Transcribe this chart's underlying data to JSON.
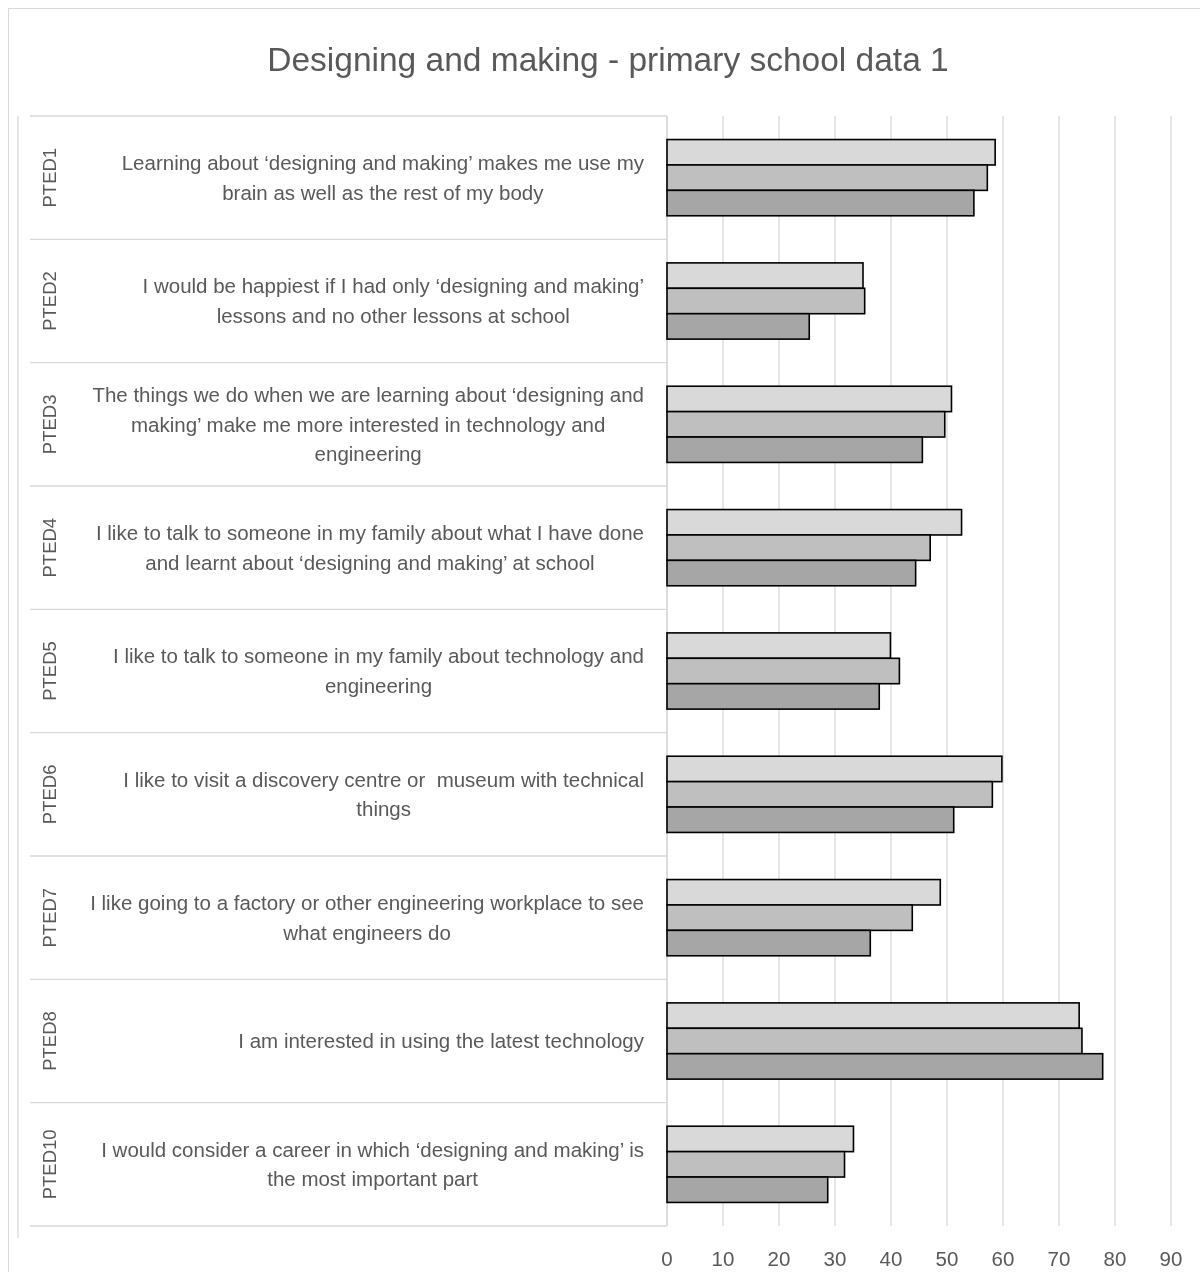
{
  "chart_data": {
    "type": "bar",
    "orientation": "horizontal",
    "title": "Designing and making - primary school data 1",
    "categories": [
      "Learning about ‘designing and making’ makes me use my brain as well as the rest of my body",
      "I would be happiest if I had only ‘designing and making’ lessons and no other lessons at school",
      "The things we do when we are learning about ‘designing and making’ make me more interested in technology and engineering",
      "I like to talk to someone in my family about what I have done and learnt about ‘designing and making’ at school",
      "I like to talk to someone in my family about technology and engineering",
      "I like to visit a discovery centre or  museum with technical things",
      "I like going to a factory or other engineering workplace to see what engineers do",
      "I am interested in using the latest technology",
      "I would consider a career in which ‘designing and making’ is the most important part"
    ],
    "series": [
      {
        "color": "#d9d9d9",
        "values": [
          58.6,
          35.0,
          50.8,
          52.6,
          39.9,
          59.8,
          48.8,
          73.6,
          33.3
        ]
      },
      {
        "color": "#bfbfbf",
        "values": [
          57.2,
          35.3,
          49.6,
          47.0,
          41.5,
          58.1,
          43.8,
          74.1,
          31.7
        ]
      },
      {
        "color": "#a6a6a6",
        "values": [
          54.8,
          25.4,
          45.6,
          44.4,
          37.9,
          51.2,
          36.3,
          77.8,
          28.7
        ]
      }
    ],
    "xlim": [
      0,
      90
    ],
    "xticks": [
      0,
      10,
      20,
      30,
      40,
      50,
      60,
      70,
      80,
      90
    ],
    "grid": "x",
    "annotations": [
      "PTED1",
      "PTED2",
      "PTED3",
      "PTED4",
      "PTED5",
      "PTED6",
      "PTED7",
      "PTED8",
      "PTED10"
    ]
  }
}
